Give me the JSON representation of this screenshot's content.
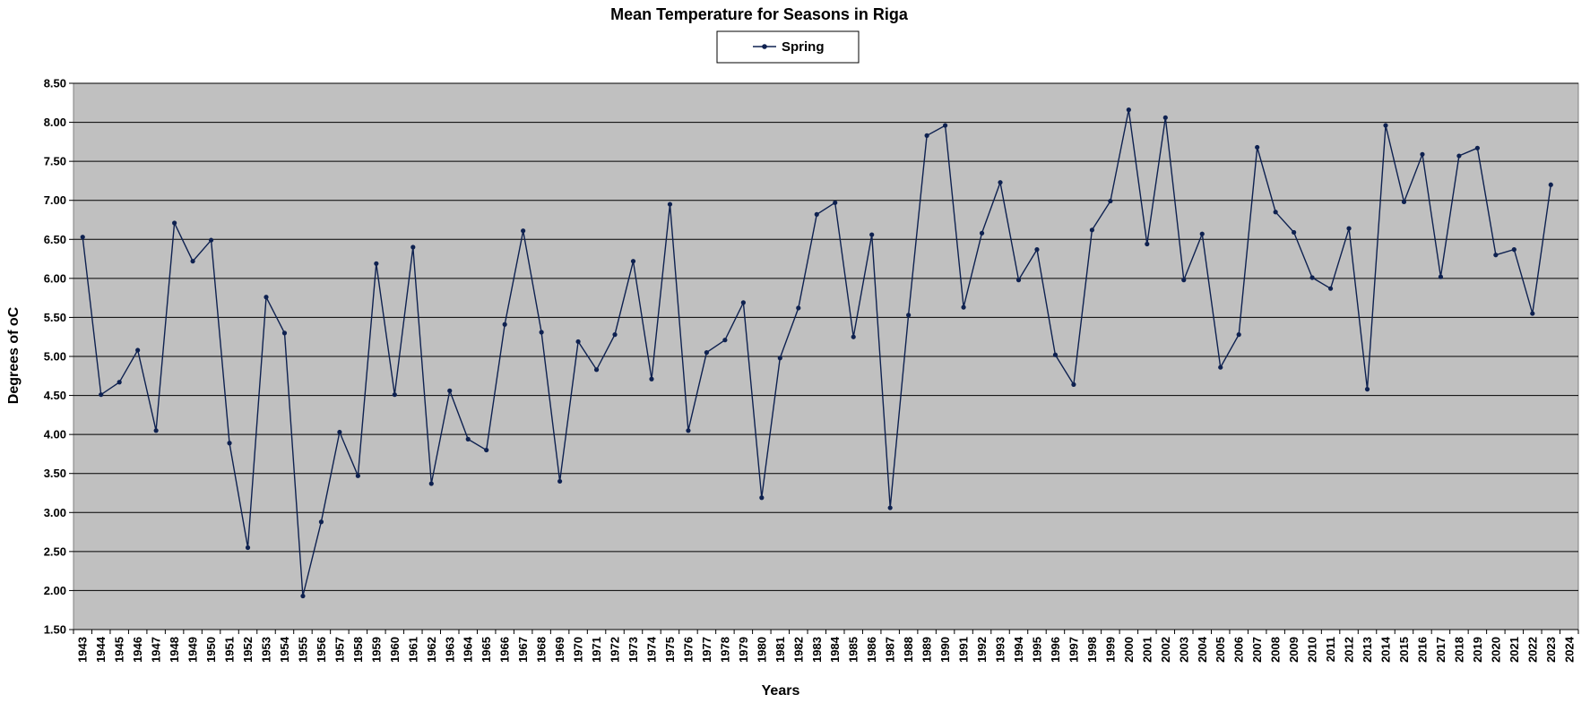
{
  "colors": {
    "plot_background": "#C0C0C0",
    "series_line": "#0E2150",
    "grid": "#000000"
  },
  "chart_data": {
    "type": "line",
    "title": "Mean Temperature for Seasons in Riga",
    "xlabel": "Years",
    "ylabel": "Degrees of  oC",
    "ylim": [
      1.5,
      8.5
    ],
    "ytick_step": 0.5,
    "yticks": [
      "1.50",
      "2.00",
      "2.50",
      "3.00",
      "3.50",
      "4.00",
      "4.50",
      "5.00",
      "5.50",
      "6.00",
      "6.50",
      "7.00",
      "7.50",
      "8.00",
      "8.50"
    ],
    "grid": true,
    "legend": "top-center",
    "x": [
      1943,
      1944,
      1945,
      1946,
      1947,
      1948,
      1949,
      1950,
      1951,
      1952,
      1953,
      1954,
      1955,
      1956,
      1957,
      1958,
      1959,
      1960,
      1961,
      1962,
      1963,
      1964,
      1965,
      1966,
      1967,
      1968,
      1969,
      1970,
      1971,
      1972,
      1973,
      1974,
      1975,
      1976,
      1977,
      1978,
      1979,
      1980,
      1981,
      1982,
      1983,
      1984,
      1985,
      1986,
      1987,
      1988,
      1989,
      1990,
      1991,
      1992,
      1993,
      1994,
      1995,
      1996,
      1997,
      1998,
      1999,
      2000,
      2001,
      2002,
      2003,
      2004,
      2005,
      2006,
      2007,
      2008,
      2009,
      2010,
      2011,
      2012,
      2013,
      2014,
      2015,
      2016,
      2017,
      2018,
      2019,
      2020,
      2021,
      2022,
      2023,
      2024
    ],
    "series": [
      {
        "name": "Spring",
        "values": [
          6.53,
          4.51,
          4.67,
          5.08,
          4.05,
          6.71,
          6.22,
          6.49,
          3.89,
          2.55,
          5.76,
          5.3,
          1.93,
          2.88,
          4.03,
          3.47,
          6.19,
          4.51,
          6.4,
          3.37,
          4.56,
          3.94,
          3.8,
          5.41,
          6.61,
          5.31,
          3.4,
          5.19,
          4.83,
          5.28,
          6.22,
          4.71,
          6.95,
          4.05,
          5.05,
          5.21,
          5.69,
          3.19,
          4.98,
          5.62,
          6.82,
          6.97,
          5.25,
          6.56,
          3.06,
          5.53,
          7.83,
          7.96,
          5.63,
          6.58,
          7.23,
          5.98,
          6.37,
          5.02,
          4.64,
          6.62,
          6.99,
          8.16,
          6.44,
          8.06,
          5.98,
          6.57,
          4.86,
          5.28,
          7.68,
          6.85,
          6.59,
          6.01,
          5.87,
          6.64,
          4.58,
          7.96,
          6.98,
          7.59,
          6.02,
          7.57,
          7.67,
          6.3,
          6.37,
          5.55,
          7.2,
          null
        ]
      }
    ]
  }
}
